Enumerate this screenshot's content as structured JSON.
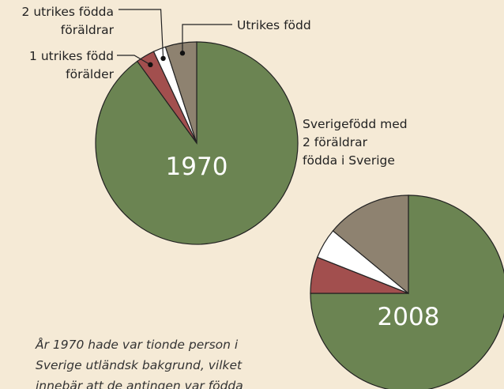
{
  "chart_data": [
    {
      "type": "pie",
      "label": "1970",
      "categories": [
        [
          "Sverigefödd med",
          "2 föräldrar",
          "födda i Sverige"
        ],
        [
          "1 utrikes född",
          "förälder"
        ],
        [
          "2 utrikes födda",
          "föräldrar"
        ],
        [
          "Utrikes född"
        ]
      ],
      "values": [
        90,
        3,
        2,
        5
      ],
      "colors": [
        "#6b8452",
        "#a24f4e",
        "#ffffff",
        "#8e8270"
      ]
    },
    {
      "type": "pie",
      "label": "2008",
      "values": [
        75,
        6,
        5,
        14
      ],
      "colors": [
        "#6b8452",
        "#a24f4e",
        "#ffffff",
        "#8e8270"
      ]
    }
  ],
  "note": [
    "År 1970 hade var tionde person i",
    "Sverige utländsk bakgrund, vilket",
    "innebär att de antingen var födda"
  ]
}
